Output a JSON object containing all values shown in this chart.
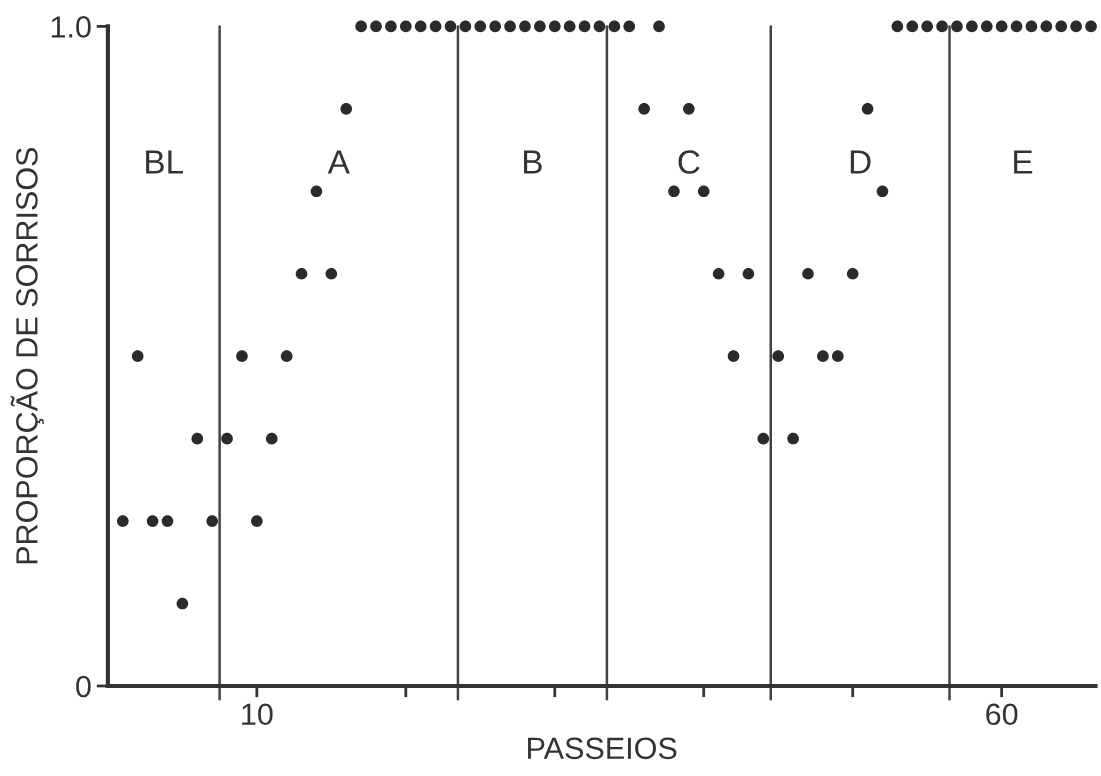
{
  "chart_data": {
    "type": "scatter",
    "xlabel": "PASSEIOS",
    "ylabel": "PROPORÇÃO DE SORRISOS",
    "x": [
      1,
      2,
      3,
      4,
      5,
      6,
      7,
      8,
      9,
      10,
      11,
      12,
      13,
      14,
      15,
      16,
      17,
      18,
      19,
      20,
      21,
      22,
      23,
      24,
      25,
      26,
      27,
      28,
      29,
      30,
      31,
      32,
      33,
      34,
      35,
      36,
      37,
      38,
      39,
      40,
      41,
      42,
      43,
      44,
      45,
      46,
      47,
      48,
      49,
      50,
      51,
      52,
      53,
      54,
      55,
      56,
      57,
      58,
      59,
      60,
      61,
      62,
      63,
      64,
      65,
      66
    ],
    "series": [
      {
        "color": "#2b2b2b",
        "values": [
          0.25,
          0.5,
          0.25,
          0.25,
          0.125,
          0.375,
          0.25,
          0.375,
          0.5,
          0.25,
          0.375,
          0.5,
          0.625,
          0.75,
          0.625,
          0.875,
          1,
          1,
          1,
          1,
          1,
          1,
          1,
          1,
          1,
          1,
          1,
          1,
          1,
          1,
          1,
          1,
          1,
          1,
          1,
          0.875,
          1,
          0.75,
          0.875,
          0.75,
          0.625,
          0.5,
          0.625,
          0.375,
          0.5,
          0.375,
          0.625,
          0.5,
          0.5,
          0.625,
          0.875,
          0.75,
          1,
          1,
          1,
          1,
          1,
          1,
          1,
          1,
          1,
          1,
          1,
          1,
          1,
          1
        ]
      }
    ],
    "xlim": [
      0,
      66.3
    ],
    "ylim": [
      0,
      1
    ],
    "xticks": [
      {
        "value": 10,
        "label": "10"
      },
      {
        "value": 20,
        "label": null
      },
      {
        "value": 30,
        "label": null
      },
      {
        "value": 40,
        "label": null
      },
      {
        "value": 50,
        "label": null
      },
      {
        "value": 60,
        "label": "60"
      }
    ],
    "yticks": [
      0,
      {
        "value": 1,
        "label": "1.0"
      }
    ],
    "ref_lines": [
      {
        "axis": "x",
        "value": 7.5,
        "color": "#444444"
      },
      {
        "axis": "x",
        "value": 23.5,
        "color": "#444444"
      },
      {
        "axis": "x",
        "value": 33.5,
        "color": "#444444"
      },
      {
        "axis": "x",
        "value": 44.5,
        "color": "#444444"
      },
      {
        "axis": "x",
        "value": 56.5,
        "color": "#444444"
      }
    ],
    "annotations": [
      "BL",
      "A",
      "B",
      "C",
      "D",
      "E"
    ],
    "marker": "circle",
    "grid": false,
    "legend": false
  }
}
